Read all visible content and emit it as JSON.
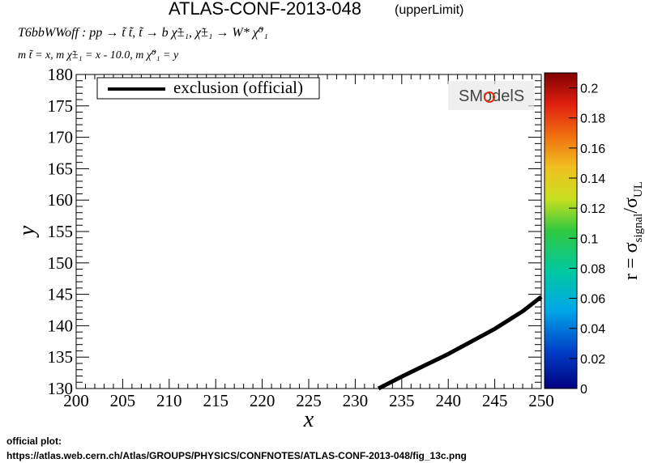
{
  "header": {
    "title": "ATLAS-CONF-2013-048",
    "title_suffix": "(upperLimit)",
    "process": "T6bbWWoff : pp → t̃ t̃, t̃ → b χ̃±₁, χ̃±₁ → W* χ̃⁰₁",
    "masses": "m t̃ = x, m χ̃±₁ = x - 10.0, m χ̃⁰₁ = y"
  },
  "footer": {
    "line1": "official plot:",
    "line2": "https://atlas.web.cern.ch/Atlas/GROUPS/PHYSICS/CONFNOTES/ATLAS-CONF-2013-048/fig_13c.png"
  },
  "logo": {
    "text": "SModelS"
  },
  "chart_data": {
    "type": "line",
    "xlabel": "x",
    "ylabel": "y",
    "xlim": [
      200,
      250
    ],
    "ylim": [
      130,
      180
    ],
    "xticks": [
      200,
      205,
      210,
      215,
      220,
      225,
      230,
      235,
      240,
      245,
      250
    ],
    "yticks": [
      130,
      135,
      140,
      145,
      150,
      155,
      160,
      165,
      170,
      175,
      180
    ],
    "legend_position": "top-left",
    "series": [
      {
        "name": "exclusion (official)",
        "color": "#000000",
        "x": [
          232.5,
          235,
          240,
          245,
          248,
          250
        ],
        "y": [
          130,
          131.9,
          135.5,
          139.5,
          142.3,
          144.6
        ]
      }
    ],
    "colorbar": {
      "label": "r = σsignal/σUL",
      "range": [
        0,
        0.21
      ],
      "ticks": [
        "0",
        "0.02",
        "0.04",
        "0.06",
        "0.08",
        "0.1",
        "0.12",
        "0.14",
        "0.16",
        "0.18",
        "0.2"
      ]
    }
  }
}
